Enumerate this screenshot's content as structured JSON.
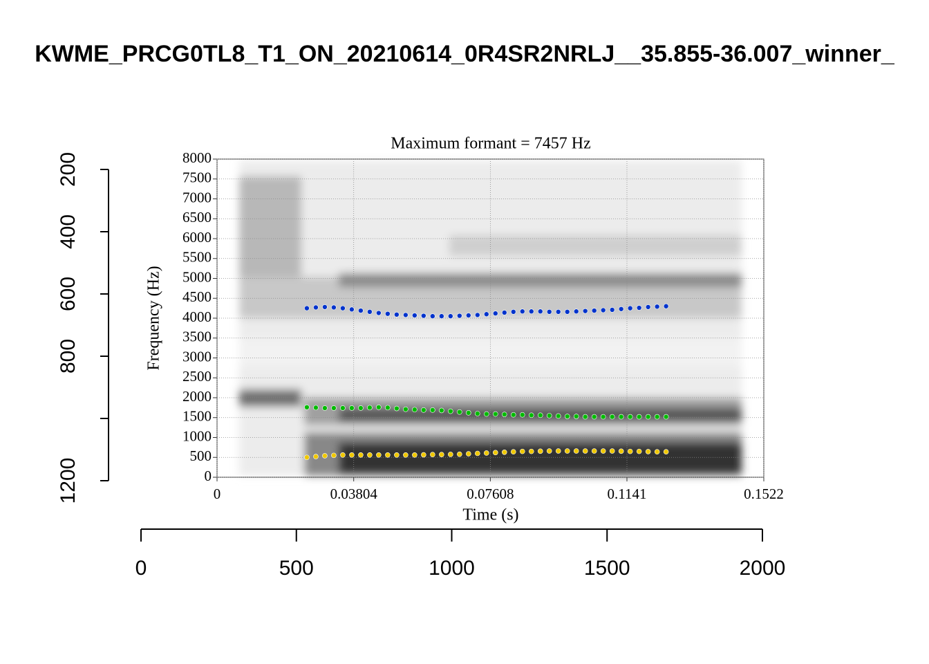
{
  "chart_data": [
    {
      "type": "axes",
      "title": "KWME_PRCG0TL8_T1_ON_20210614_0R4SR2NRLJ__35.855-36.007_winner_",
      "ylim": [
        200,
        1200
      ],
      "y_reversed": true,
      "yticks": [
        200,
        400,
        600,
        800,
        {
          "value": 1000,
          "label": null
        },
        1200
      ],
      "xlim": [
        0,
        2000
      ],
      "xticks": [
        0,
        500,
        1000,
        1500,
        2000
      ]
    },
    {
      "type": "scatter",
      "title": "Maximum formant  =  7457 Hz",
      "x_label": "Time (s)",
      "y_label": "Frequency (Hz)",
      "xlim": [
        0,
        0.1522
      ],
      "xticks": [
        0,
        0.03804,
        0.07608,
        0.1141,
        0.1522
      ],
      "ylim": [
        0,
        8000
      ],
      "yticks": [
        0,
        500,
        1000,
        1500,
        2000,
        2500,
        3000,
        3500,
        4000,
        4500,
        5000,
        5500,
        6000,
        6500,
        7000,
        7500,
        8000
      ],
      "grid": true,
      "x": [
        0.025,
        0.0275,
        0.03,
        0.0325,
        0.035,
        0.0375,
        0.04,
        0.0425,
        0.045,
        0.0475,
        0.05,
        0.0525,
        0.055,
        0.0575,
        0.06,
        0.0625,
        0.065,
        0.0675,
        0.07,
        0.0725,
        0.075,
        0.0775,
        0.08,
        0.0825,
        0.085,
        0.0875,
        0.09,
        0.0925,
        0.095,
        0.0975,
        0.1,
        0.1025,
        0.105,
        0.1075,
        0.11,
        0.1125,
        0.115,
        0.1175,
        0.12,
        0.1225,
        0.125
      ],
      "series": [
        {
          "color": "#0033cc",
          "values": [
            4250,
            4270,
            4280,
            4270,
            4250,
            4220,
            4190,
            4160,
            4130,
            4110,
            4090,
            4080,
            4070,
            4060,
            4050,
            4050,
            4050,
            4060,
            4070,
            4080,
            4100,
            4120,
            4140,
            4160,
            4170,
            4170,
            4170,
            4160,
            4160,
            4160,
            4170,
            4180,
            4190,
            4200,
            4210,
            4230,
            4250,
            4260,
            4280,
            4290,
            4300
          ]
        },
        {
          "color": "#00bb00",
          "values": [
            1760,
            1750,
            1740,
            1740,
            1740,
            1740,
            1740,
            1750,
            1760,
            1750,
            1730,
            1710,
            1700,
            1690,
            1690,
            1680,
            1660,
            1640,
            1620,
            1600,
            1590,
            1590,
            1580,
            1570,
            1570,
            1560,
            1560,
            1550,
            1540,
            1530,
            1530,
            1520,
            1520,
            1520,
            1520,
            1520,
            1520,
            1520,
            1520,
            1520,
            1520
          ]
        },
        {
          "color": "#f0c800",
          "values": [
            500,
            520,
            540,
            550,
            560,
            560,
            560,
            560,
            560,
            560,
            560,
            560,
            560,
            565,
            570,
            570,
            575,
            580,
            590,
            600,
            610,
            620,
            630,
            640,
            650,
            650,
            655,
            660,
            660,
            660,
            660,
            660,
            660,
            660,
            660,
            655,
            650,
            650,
            645,
            640,
            640
          ]
        }
      ]
    }
  ]
}
